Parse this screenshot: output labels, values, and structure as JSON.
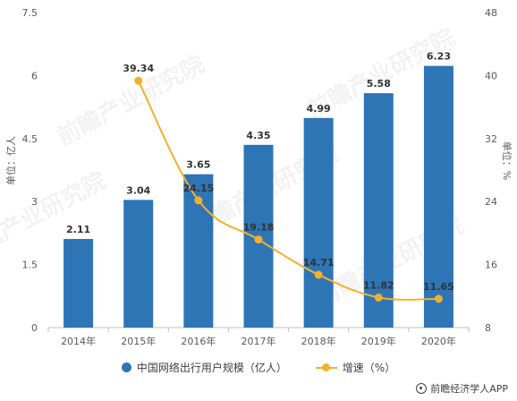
{
  "chart_data": {
    "type": "bar",
    "categories": [
      "2014年",
      "2015年",
      "2016年",
      "2017年",
      "2018年",
      "2019年",
      "2020年"
    ],
    "series": [
      {
        "name": "中国网络出行用户规模（亿人）",
        "type": "bar",
        "axis": "left",
        "values": [
          2.11,
          3.04,
          3.65,
          4.35,
          4.99,
          5.58,
          6.23
        ],
        "labels": [
          "2.11",
          "3.04",
          "3.65",
          "4.35",
          "4.99",
          "5.58",
          "6.23"
        ],
        "color": "#2E75B6"
      },
      {
        "name": "增速（%）",
        "type": "line",
        "axis": "right",
        "values": [
          null,
          39.34,
          24.15,
          19.18,
          14.71,
          11.82,
          11.65
        ],
        "labels": [
          null,
          "39.34",
          "24.15",
          "19.18",
          "14.71",
          "11.82",
          "11.65"
        ],
        "color": "#F2B02D"
      }
    ],
    "ylabel_left": "单位：亿人",
    "ylabel_right": "单位：%",
    "ylim_left": [
      0,
      7.5
    ],
    "ylim_right": [
      8,
      48
    ],
    "yticks_left": [
      "0",
      "1.5",
      "3",
      "4.5",
      "6",
      "7.5"
    ],
    "yticks_right": [
      "8",
      "16",
      "24",
      "32",
      "40",
      "48"
    ],
    "grid": false,
    "legend_position": "bottom"
  },
  "legend": {
    "bar_label": "中国网络出行用户规模（亿人）",
    "line_label": "增速（%）"
  },
  "source": "前瞻经济学人APP",
  "watermark": "前瞻产业研究院"
}
